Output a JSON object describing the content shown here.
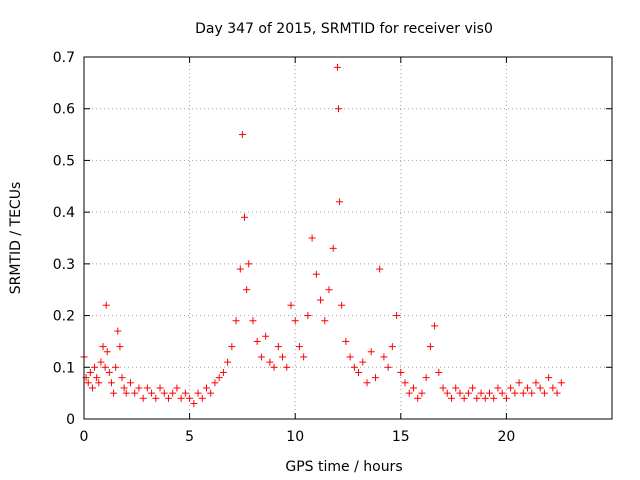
{
  "chart_data": {
    "type": "scatter",
    "title": "Day 347 of 2015, SRMTID for receiver vis0",
    "xlabel": "GPS time / hours",
    "ylabel": "SRMTID / TECUs",
    "xlim": [
      0,
      25
    ],
    "ylim": [
      0,
      0.7
    ],
    "xticks": [
      0,
      5,
      10,
      15,
      20
    ],
    "xtick_labels": [
      "0",
      "5",
      "10",
      "15",
      "20"
    ],
    "yticks": [
      0,
      0.1,
      0.2,
      0.3,
      0.4,
      0.5,
      0.6,
      0.7
    ],
    "ytick_labels": [
      "0",
      "0.1",
      "0.2",
      "0.3",
      "0.4",
      "0.5",
      "0.6",
      "0.7"
    ],
    "grid": true,
    "marker": "+",
    "series": [
      {
        "name": "SRMTID",
        "color": "#ff0000",
        "x": [
          0.0,
          0.1,
          0.2,
          0.3,
          0.4,
          0.5,
          0.6,
          0.7,
          0.8,
          0.9,
          1.0,
          1.05,
          1.1,
          1.2,
          1.3,
          1.4,
          1.5,
          1.6,
          1.7,
          1.8,
          1.9,
          2.0,
          2.2,
          2.4,
          2.6,
          2.8,
          3.0,
          3.2,
          3.4,
          3.6,
          3.8,
          4.0,
          4.2,
          4.4,
          4.6,
          4.8,
          5.0,
          5.2,
          5.4,
          5.6,
          5.8,
          6.0,
          6.2,
          6.4,
          6.6,
          6.8,
          7.0,
          7.2,
          7.4,
          7.5,
          7.6,
          7.7,
          7.8,
          8.0,
          8.2,
          8.4,
          8.6,
          8.8,
          9.0,
          9.2,
          9.4,
          9.6,
          9.8,
          10.0,
          10.2,
          10.4,
          10.6,
          10.8,
          11.0,
          11.2,
          11.4,
          11.6,
          11.8,
          12.0,
          12.05,
          12.1,
          12.2,
          12.4,
          12.6,
          12.8,
          13.0,
          13.2,
          13.4,
          13.6,
          13.8,
          14.0,
          14.2,
          14.4,
          14.6,
          14.8,
          15.0,
          15.2,
          15.4,
          15.6,
          15.8,
          16.0,
          16.2,
          16.4,
          16.6,
          16.8,
          17.0,
          17.2,
          17.4,
          17.6,
          17.8,
          18.0,
          18.2,
          18.4,
          18.6,
          18.8,
          19.0,
          19.2,
          19.4,
          19.6,
          19.8,
          20.0,
          20.2,
          20.4,
          20.6,
          20.8,
          21.0,
          21.2,
          21.4,
          21.6,
          21.8,
          22.0,
          22.2,
          22.4,
          22.6
        ],
        "y": [
          0.12,
          0.08,
          0.07,
          0.09,
          0.06,
          0.1,
          0.08,
          0.07,
          0.11,
          0.14,
          0.1,
          0.22,
          0.13,
          0.09,
          0.07,
          0.05,
          0.1,
          0.17,
          0.14,
          0.08,
          0.06,
          0.05,
          0.07,
          0.05,
          0.06,
          0.04,
          0.06,
          0.05,
          0.04,
          0.06,
          0.05,
          0.04,
          0.05,
          0.06,
          0.04,
          0.05,
          0.04,
          0.03,
          0.05,
          0.04,
          0.06,
          0.05,
          0.07,
          0.08,
          0.09,
          0.11,
          0.14,
          0.19,
          0.29,
          0.55,
          0.39,
          0.25,
          0.3,
          0.19,
          0.15,
          0.12,
          0.16,
          0.11,
          0.1,
          0.14,
          0.12,
          0.1,
          0.22,
          0.19,
          0.14,
          0.12,
          0.2,
          0.35,
          0.28,
          0.23,
          0.19,
          0.25,
          0.33,
          0.68,
          0.6,
          0.42,
          0.22,
          0.15,
          0.12,
          0.1,
          0.09,
          0.11,
          0.07,
          0.13,
          0.08,
          0.29,
          0.12,
          0.1,
          0.14,
          0.2,
          0.09,
          0.07,
          0.05,
          0.06,
          0.04,
          0.05,
          0.08,
          0.14,
          0.18,
          0.09,
          0.06,
          0.05,
          0.04,
          0.06,
          0.05,
          0.04,
          0.05,
          0.06,
          0.04,
          0.05,
          0.04,
          0.05,
          0.04,
          0.06,
          0.05,
          0.04,
          0.06,
          0.05,
          0.07,
          0.05,
          0.06,
          0.05,
          0.07,
          0.06,
          0.05,
          0.08,
          0.06,
          0.05,
          0.07
        ]
      }
    ]
  }
}
